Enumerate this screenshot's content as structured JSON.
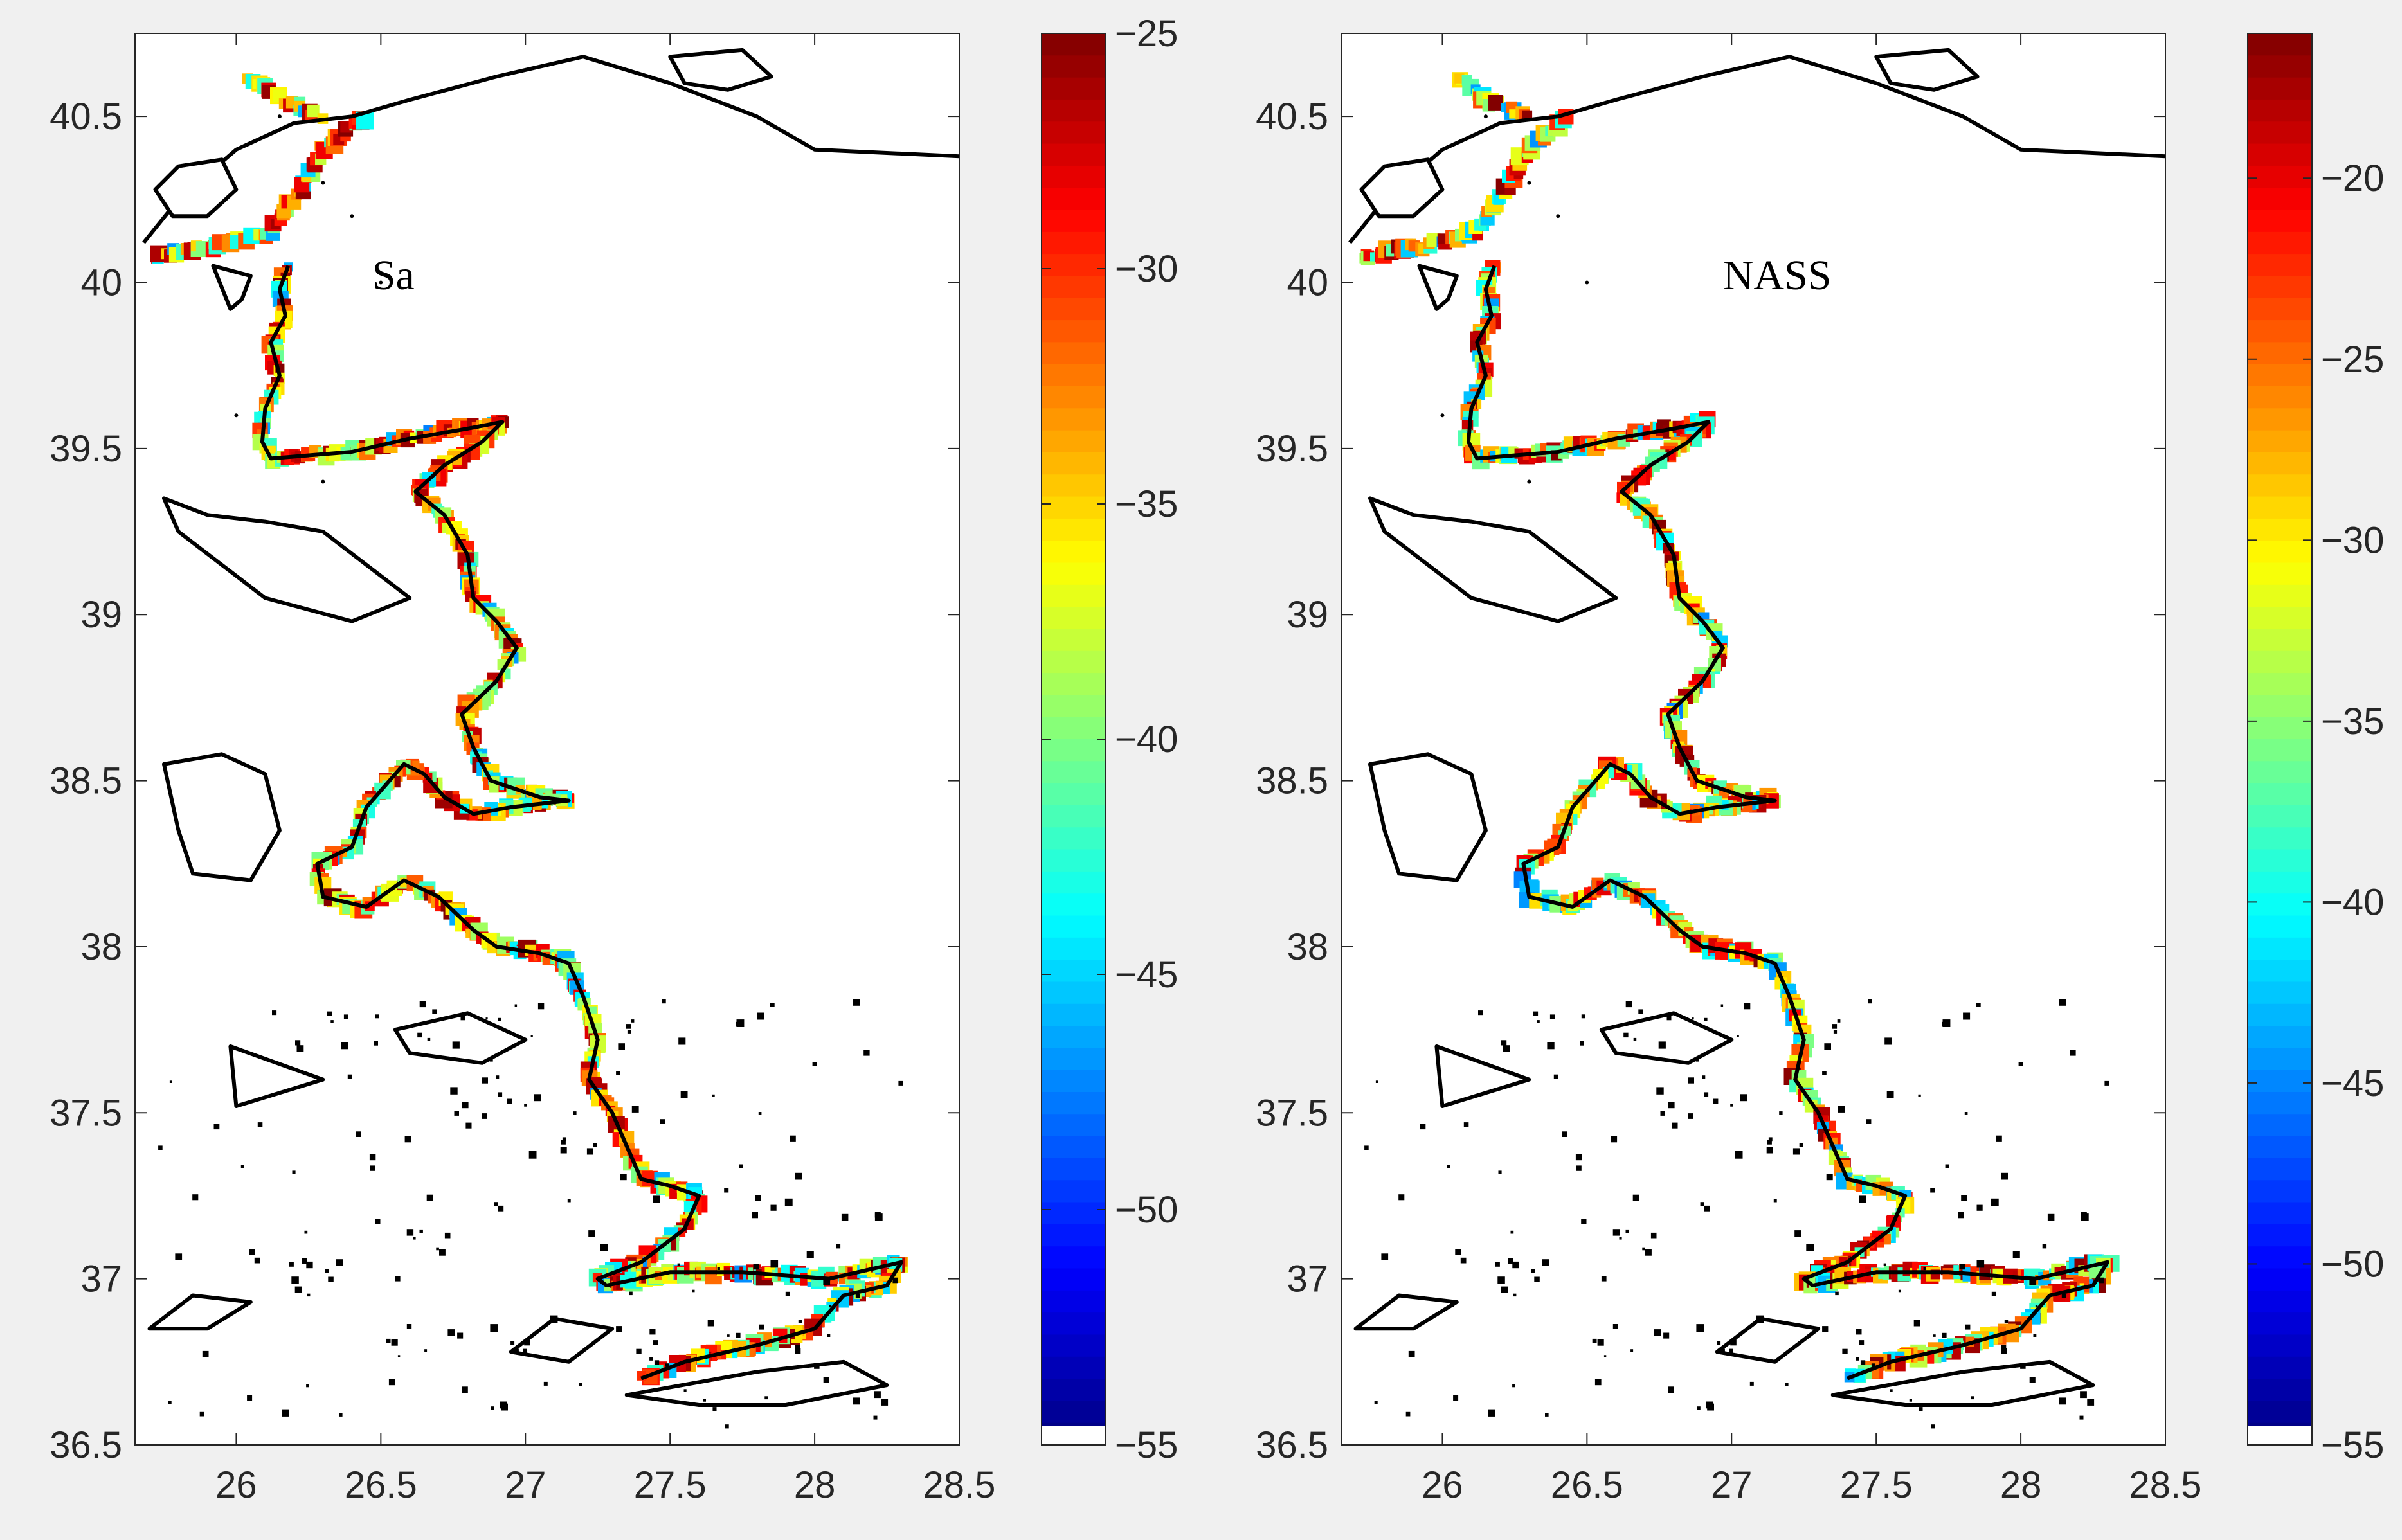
{
  "chart_data": [
    {
      "type": "heatmap",
      "title": "",
      "annotation": "Sa",
      "xlim": [
        25.65,
        28.5
      ],
      "ylim": [
        36.5,
        40.75
      ],
      "xticks": [
        26,
        26.5,
        27,
        27.5,
        28,
        28.5
      ],
      "xtick_labels": [
        "26",
        "26.5",
        "27",
        "27.5",
        "28",
        "28.5"
      ],
      "yticks": [
        36.5,
        37,
        37.5,
        38,
        38.5,
        39,
        39.5,
        40,
        40.5
      ],
      "ytick_labels": [
        "36.5",
        "37",
        "37.5",
        "38",
        "38.5",
        "39",
        "39.5",
        "40",
        "40.5"
      ],
      "colorbar": {
        "range": [
          -55,
          -25
        ],
        "ticks": [
          -25,
          -30,
          -35,
          -40,
          -45,
          -50,
          -55
        ],
        "tick_labels": [
          "−25",
          "−30",
          "−35",
          "−40",
          "−45",
          "−50",
          "−55"
        ],
        "colormap": "jet"
      },
      "coastline_color": "#000000",
      "grid": false
    },
    {
      "type": "heatmap",
      "title": "",
      "annotation": "NASS",
      "xlim": [
        25.65,
        28.5
      ],
      "ylim": [
        36.5,
        40.75
      ],
      "xticks": [
        26,
        26.5,
        27,
        27.5,
        28,
        28.5
      ],
      "xtick_labels": [
        "26",
        "26.5",
        "27",
        "27.5",
        "28",
        "28.5"
      ],
      "yticks": [
        36.5,
        37,
        37.5,
        38,
        38.5,
        39,
        39.5,
        40,
        40.5
      ],
      "ytick_labels": [
        "36.5",
        "37",
        "37.5",
        "38",
        "38.5",
        "39",
        "39.5",
        "40",
        "40.5"
      ],
      "colorbar": {
        "range": [
          -55,
          -16
        ],
        "ticks": [
          -20,
          -25,
          -30,
          -35,
          -40,
          -45,
          -50,
          -55
        ],
        "tick_labels": [
          "−20",
          "−25",
          "−30",
          "−35",
          "−40",
          "−45",
          "−50",
          "−55"
        ],
        "colormap": "jet"
      },
      "coastline_color": "#000000",
      "grid": false
    }
  ]
}
